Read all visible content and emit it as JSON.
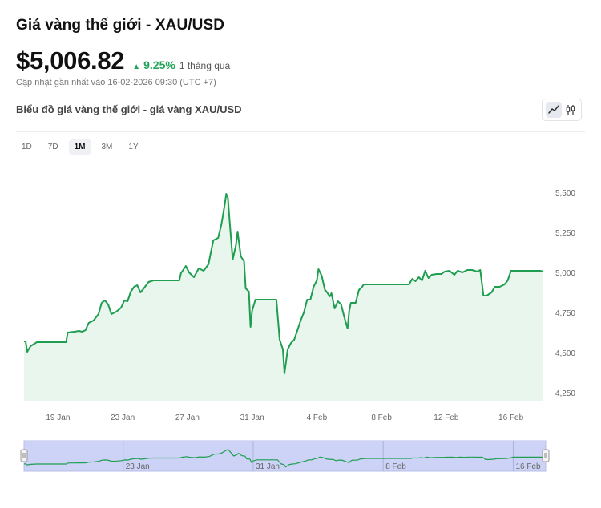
{
  "header": {
    "title": "Giá vàng thế giới - XAU/USD",
    "price": "$5,006.82",
    "change_pct": "9.25%",
    "change_period": "1 tháng qua",
    "updated": "Cập nhật gần nhất vào 16-02-2026 09:30 (UTC +7)"
  },
  "chart_header": {
    "subtitle": "Biểu đồ giá vàng thế giới - giá vàng XAU/USD"
  },
  "toolbar": {
    "ranges": [
      "1D",
      "7D",
      "1M",
      "3M",
      "1Y"
    ],
    "active_range": "1M",
    "chart_types": [
      "line-chart-icon",
      "candlestick-icon"
    ],
    "active_chart_type": "line-chart-icon"
  },
  "colors": {
    "line": "#1f9d50",
    "fill": "#e9f6ee",
    "navigator_fill": "#cdd3f6",
    "up": "#22a55b"
  },
  "chart_data": {
    "type": "area",
    "title": "",
    "xlabel": "",
    "ylabel": "",
    "ylim": [
      4200,
      5650
    ],
    "y_ticks": [
      4250,
      4500,
      4750,
      5000,
      5250,
      5500
    ],
    "y_tick_labels": [
      "4,250",
      "4,500",
      "4,750",
      "5,000",
      "5,250",
      "5,500"
    ],
    "x_tick_labels": [
      {
        "x": 19,
        "label": "19 Jan"
      },
      {
        "x": 23,
        "label": "23 Jan"
      },
      {
        "x": 27,
        "label": "27 Jan"
      },
      {
        "x": 31,
        "label": "31 Jan"
      },
      {
        "x": 35,
        "label": "4 Feb"
      },
      {
        "x": 39,
        "label": "8 Feb"
      },
      {
        "x": 43,
        "label": "12 Feb"
      },
      {
        "x": 47,
        "label": "16 Feb"
      }
    ],
    "x_unit_note": "x = day of January 2026 (32 = 1 Feb)",
    "navigator_tick_labels": [
      {
        "x": 23,
        "label": "23 Jan"
      },
      {
        "x": 31,
        "label": "31 Jan"
      },
      {
        "x": 39,
        "label": "8 Feb"
      },
      {
        "x": 47,
        "label": "16 Feb"
      }
    ],
    "series": [
      {
        "values": [
          [
            16.9,
            4570
          ],
          [
            17.0,
            4570
          ],
          [
            17.1,
            4505
          ],
          [
            17.3,
            4540
          ],
          [
            17.7,
            4565
          ],
          [
            18.0,
            4565
          ],
          [
            18.5,
            4565
          ],
          [
            19.0,
            4565
          ],
          [
            19.5,
            4565
          ],
          [
            19.6,
            4625
          ],
          [
            20.0,
            4630
          ],
          [
            20.3,
            4635
          ],
          [
            20.5,
            4630
          ],
          [
            20.7,
            4640
          ],
          [
            20.9,
            4685
          ],
          [
            21.2,
            4700
          ],
          [
            21.5,
            4740
          ],
          [
            21.7,
            4810
          ],
          [
            21.9,
            4825
          ],
          [
            22.1,
            4800
          ],
          [
            22.3,
            4740
          ],
          [
            22.6,
            4755
          ],
          [
            22.9,
            4780
          ],
          [
            23.1,
            4825
          ],
          [
            23.3,
            4820
          ],
          [
            23.5,
            4880
          ],
          [
            23.7,
            4910
          ],
          [
            23.9,
            4920
          ],
          [
            24.1,
            4875
          ],
          [
            24.3,
            4900
          ],
          [
            24.6,
            4940
          ],
          [
            24.9,
            4950
          ],
          [
            25.3,
            4950
          ],
          [
            25.7,
            4950
          ],
          [
            26.0,
            4950
          ],
          [
            26.2,
            4950
          ],
          [
            26.5,
            4950
          ],
          [
            26.6,
            4995
          ],
          [
            26.9,
            5040
          ],
          [
            27.1,
            5000
          ],
          [
            27.4,
            4970
          ],
          [
            27.7,
            5025
          ],
          [
            28.0,
            5010
          ],
          [
            28.3,
            5050
          ],
          [
            28.6,
            5200
          ],
          [
            28.9,
            5215
          ],
          [
            29.1,
            5300
          ],
          [
            29.3,
            5420
          ],
          [
            29.4,
            5490
          ],
          [
            29.5,
            5465
          ],
          [
            29.6,
            5330
          ],
          [
            29.8,
            5080
          ],
          [
            30.0,
            5170
          ],
          [
            30.1,
            5255
          ],
          [
            30.3,
            5100
          ],
          [
            30.5,
            5070
          ],
          [
            30.6,
            4900
          ],
          [
            30.8,
            4880
          ],
          [
            30.9,
            4660
          ],
          [
            31.0,
            4760
          ],
          [
            31.2,
            4830
          ],
          [
            31.6,
            4830
          ],
          [
            32.0,
            4830
          ],
          [
            32.3,
            4830
          ],
          [
            32.5,
            4830
          ],
          [
            32.7,
            4580
          ],
          [
            32.9,
            4520
          ],
          [
            33.0,
            4370
          ],
          [
            33.2,
            4520
          ],
          [
            33.4,
            4560
          ],
          [
            33.6,
            4580
          ],
          [
            33.8,
            4640
          ],
          [
            34.0,
            4700
          ],
          [
            34.2,
            4750
          ],
          [
            34.4,
            4830
          ],
          [
            34.6,
            4830
          ],
          [
            34.8,
            4910
          ],
          [
            35.0,
            4950
          ],
          [
            35.1,
            5020
          ],
          [
            35.3,
            4980
          ],
          [
            35.5,
            4890
          ],
          [
            35.6,
            4880
          ],
          [
            35.8,
            4850
          ],
          [
            35.9,
            4870
          ],
          [
            36.1,
            4775
          ],
          [
            36.3,
            4820
          ],
          [
            36.5,
            4800
          ],
          [
            36.7,
            4720
          ],
          [
            36.9,
            4650
          ],
          [
            37.0,
            4760
          ],
          [
            37.1,
            4810
          ],
          [
            37.4,
            4810
          ],
          [
            37.6,
            4890
          ],
          [
            37.8,
            4910
          ],
          [
            37.9,
            4925
          ],
          [
            38.3,
            4925
          ],
          [
            38.7,
            4925
          ],
          [
            39.2,
            4925
          ],
          [
            39.7,
            4925
          ],
          [
            40.2,
            4925
          ],
          [
            40.7,
            4925
          ],
          [
            40.9,
            4960
          ],
          [
            41.1,
            4945
          ],
          [
            41.3,
            4970
          ],
          [
            41.5,
            4950
          ],
          [
            41.7,
            5010
          ],
          [
            41.9,
            4965
          ],
          [
            42.1,
            4985
          ],
          [
            42.4,
            4990
          ],
          [
            42.7,
            4990
          ],
          [
            42.9,
            5005
          ],
          [
            43.2,
            5010
          ],
          [
            43.5,
            4985
          ],
          [
            43.7,
            5010
          ],
          [
            44.0,
            5000
          ],
          [
            44.3,
            5015
          ],
          [
            44.6,
            5015
          ],
          [
            44.9,
            5005
          ],
          [
            45.1,
            5015
          ],
          [
            45.3,
            4855
          ],
          [
            45.5,
            4855
          ],
          [
            45.8,
            4875
          ],
          [
            46.0,
            4910
          ],
          [
            46.3,
            4910
          ],
          [
            46.6,
            4925
          ],
          [
            46.8,
            4950
          ],
          [
            47.0,
            5010
          ],
          [
            47.5,
            5010
          ],
          [
            48.0,
            5010
          ],
          [
            48.5,
            5010
          ],
          [
            48.8,
            5010
          ],
          [
            49.0,
            5005
          ]
        ]
      }
    ]
  }
}
